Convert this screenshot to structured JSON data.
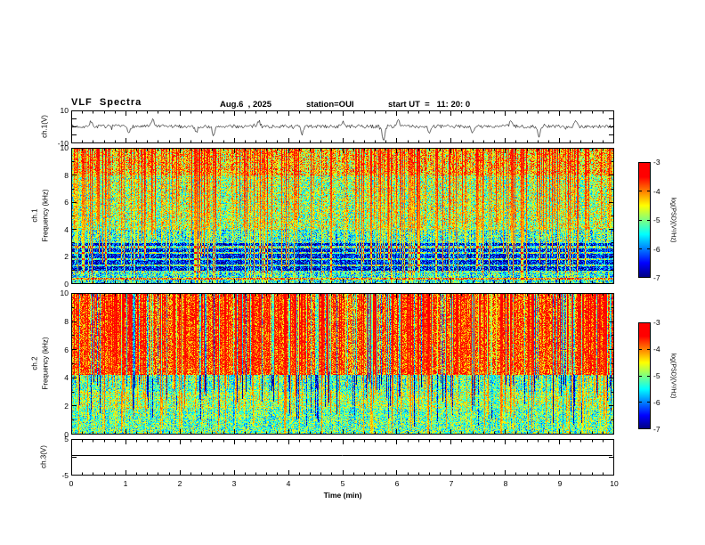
{
  "header": {
    "title": "VLF  Spectra",
    "date": "Aug.6  , 2025",
    "station": "station=OUI",
    "start_ut": "start UT  =   11: 20: 0"
  },
  "axes": {
    "time_label": "Time  (min)",
    "time_ticks": [
      0,
      1,
      2,
      3,
      4,
      5,
      6,
      7,
      8,
      9,
      10
    ],
    "ch1_wave_label": "ch.1(V)",
    "ch1_wave_ticks": [
      10,
      -10
    ],
    "ch1_label": "ch.1",
    "ch2_label": "ch.2",
    "freq_label": "Frequency  (kHz)",
    "freq_ticks": [
      0,
      2,
      4,
      6,
      8,
      10
    ],
    "ch3_label": "ch.3(V)",
    "ch3_ticks": [
      5,
      -5
    ],
    "colorbar_label": "log(PSD)(V²/Hz)",
    "colorbar_ticks": [
      -3,
      -4,
      -5,
      -6,
      -7
    ]
  },
  "chart_data": [
    {
      "name": "ch1-waveform",
      "type": "line",
      "xlabel": "Time (min)",
      "xlim": [
        0,
        10
      ],
      "ylabel": "ch.1(V)",
      "ylim": [
        -10,
        10
      ],
      "description": "Broadband noise waveform centred on 0 V with impulsive spikes",
      "noise_amp": 1.1,
      "spikes": [
        {
          "t": 0.35,
          "a": 3
        },
        {
          "t": 1.05,
          "a": -4
        },
        {
          "t": 1.5,
          "a": 4.5
        },
        {
          "t": 2.3,
          "a": -3.5
        },
        {
          "t": 2.62,
          "a": -6
        },
        {
          "t": 3.45,
          "a": 3.5
        },
        {
          "t": 4.25,
          "a": -5
        },
        {
          "t": 5.0,
          "a": 3
        },
        {
          "t": 5.75,
          "a": -9
        },
        {
          "t": 6.02,
          "a": 5
        },
        {
          "t": 6.6,
          "a": -3.5
        },
        {
          "t": 7.4,
          "a": -4
        },
        {
          "t": 8.1,
          "a": 3.5
        },
        {
          "t": 8.62,
          "a": -7
        },
        {
          "t": 9.3,
          "a": 4
        }
      ],
      "seed": 7
    },
    {
      "name": "ch1-spectrogram",
      "type": "heatmap",
      "xlim_min": [
        0,
        10
      ],
      "ylim_khz": [
        0,
        10
      ],
      "zlim_log_psd": [
        -7,
        -3
      ],
      "description": "Green/yellow background with dense red vertical impulsive streaks; dark blue quiet band 0.8-3 kHz crossed by narrow cyan horizontal lines",
      "bands": [
        {
          "f0": 8.0,
          "f1": 10.01,
          "base": -4.35
        },
        {
          "f0": 4.0,
          "f1": 8.0,
          "base": -4.85
        },
        {
          "f0": 3.0,
          "f1": 4.0,
          "base": -5.3
        },
        {
          "f0": 0.8,
          "f1": 3.0,
          "base": -6.45
        },
        {
          "f0": 0.0,
          "f1": 0.8,
          "base": -5.4
        }
      ],
      "horizontal_lines_khz": [
        0.35,
        0.9,
        1.35,
        1.8,
        2.25,
        2.7
      ],
      "vertical_streaks": {
        "density": 0.3,
        "peak": -3.3
      },
      "dark_streaks": {
        "density": 0.0,
        "drop": 0.0
      },
      "noise": 0.9,
      "column_jitter": 0.8,
      "seed": 101
    },
    {
      "name": "ch2-spectrogram",
      "type": "heatmap",
      "xlim_min": [
        0,
        10
      ],
      "ylim_khz": [
        0,
        10
      ],
      "zlim_log_psd": [
        -7,
        -3
      ],
      "description": "Intense red/orange emission above ~4 kHz cut by dark blue vertical dropouts; green/cyan background below 4 kHz",
      "bands": [
        {
          "f0": 4.2,
          "f1": 10.01,
          "base": -3.8
        },
        {
          "f0": 3.0,
          "f1": 4.2,
          "base": -5.2
        },
        {
          "f0": 1.8,
          "f1": 3.0,
          "base": -4.9
        },
        {
          "f0": 0.0,
          "f1": 1.8,
          "base": -5.15
        }
      ],
      "horizontal_lines_khz": [],
      "vertical_streaks": {
        "density": 0.35,
        "peak": -3.1
      },
      "dark_streaks": {
        "density": 0.18,
        "drop": 2.6
      },
      "noise": 0.8,
      "column_jitter": 0.6,
      "seed": 202
    },
    {
      "name": "ch3-trace",
      "type": "line",
      "xlabel": "Time (min)",
      "xlim": [
        0,
        10
      ],
      "ylabel": "ch.3(V)",
      "ylim": [
        -5,
        5
      ],
      "value": 0.5,
      "description": "Flat constant line near 0.5 V for the full 10 minutes"
    }
  ]
}
